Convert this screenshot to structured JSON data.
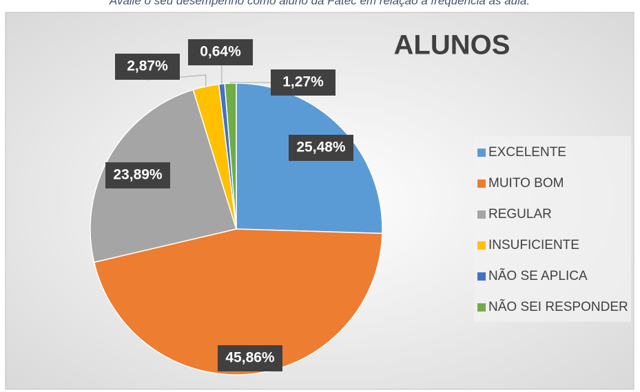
{
  "chart_data": {
    "type": "pie",
    "subtitle": "Avalie o seu desempenho como aluno da Fatec em relação à frequência às aula.",
    "title": "ALUNOS",
    "categories": [
      "EXCELENTE",
      "MUITO BOM",
      "REGULAR",
      "INSUFICIENTE",
      "NÃO SE APLICA",
      "NÃO SEI RESPONDER"
    ],
    "values": [
      25.48,
      45.86,
      23.89,
      2.87,
      0.64,
      1.27
    ],
    "value_labels": [
      "25,48%",
      "45,86%",
      "23,89%",
      "2,87%",
      "0,64%",
      "1,27%"
    ],
    "colors": [
      "#5b9bd5",
      "#ed7d31",
      "#a5a5a5",
      "#ffc000",
      "#4472c4",
      "#70ad47"
    ],
    "legend": "right"
  }
}
